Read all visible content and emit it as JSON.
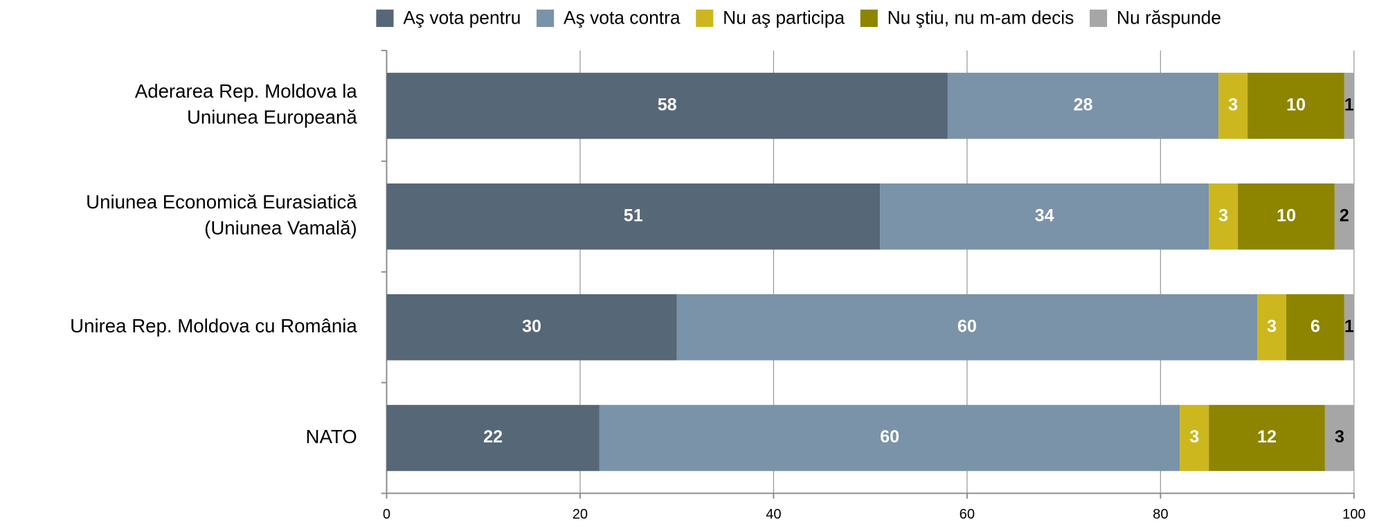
{
  "chart_data": {
    "type": "stacked_barh",
    "categories": [
      "Aderarea Rep. Moldova la\nUniunea Europeană",
      "Uniunea Economică Eurasiatică\n(Uniunea Vamală)",
      "Unirea Rep. Moldova cu România",
      "NATO"
    ],
    "series": [
      {
        "name": "Aş vota pentru",
        "color": "#566778",
        "label_color": "#ffffff",
        "values": [
          58,
          51,
          30,
          22
        ]
      },
      {
        "name": "Aş vota contra",
        "color": "#7a93a8",
        "label_color": "#ffffff",
        "values": [
          28,
          34,
          60,
          60
        ]
      },
      {
        "name": "Nu aş participa",
        "color": "#ccb71f",
        "label_color": "#ffffff",
        "values": [
          3,
          3,
          3,
          3
        ]
      },
      {
        "name": "Nu ştiu, nu m-am decis",
        "color": "#8d8400",
        "label_color": "#ffffff",
        "values": [
          10,
          10,
          6,
          12
        ]
      },
      {
        "name": "Nu răspunde",
        "color": "#a6a6a6",
        "label_color": "#000000",
        "values": [
          1,
          2,
          1,
          3
        ]
      }
    ],
    "xlim": [
      0,
      100
    ],
    "xticks": [
      0,
      20,
      40,
      60,
      80,
      100
    ],
    "grid": true,
    "legend": "top"
  }
}
